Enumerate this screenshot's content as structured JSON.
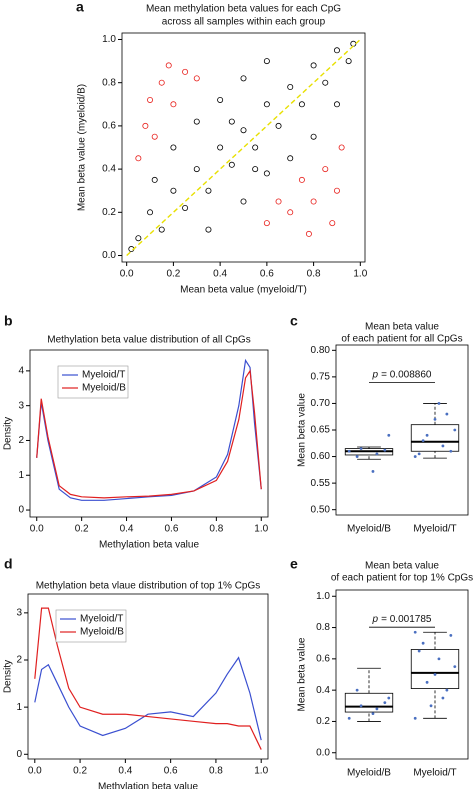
{
  "chart_data": [
    {
      "type": "scatter",
      "panel": "a",
      "title": [
        "Mean methylation beta values for each CpG",
        "across all samples within each group"
      ],
      "x_label": "Mean beta value (myeloid/T)",
      "y_label": "Mean beta value (myeloid/B)",
      "xlim": [
        -0.02,
        1.02
      ],
      "ylim": [
        -0.03,
        1.03
      ],
      "xticks": [
        {
          "value": 0,
          "label": "0.0"
        },
        0.2,
        0.4,
        0.6,
        0.8,
        {
          "value": 1,
          "label": "1.0"
        }
      ],
      "yticks": [
        {
          "value": 0,
          "label": "0.0"
        },
        0.2,
        0.4,
        0.6,
        0.8,
        {
          "value": 1,
          "label": "1.0"
        }
      ],
      "diagonal": true,
      "diagonal_color": "#e8e000",
      "series": [
        {
          "color": "#e8201c",
          "x": [
            0.05,
            0.08,
            0.1,
            0.12,
            0.15,
            0.2,
            0.18,
            0.25,
            0.3,
            0.6,
            0.65,
            0.7,
            0.75,
            0.8,
            0.85,
            0.9,
            0.92,
            0.88,
            0.78
          ],
          "values": [
            0.45,
            0.6,
            0.72,
            0.55,
            0.8,
            0.7,
            0.88,
            0.85,
            0.82,
            0.15,
            0.25,
            0.2,
            0.35,
            0.25,
            0.4,
            0.3,
            0.5,
            0.15,
            0.1
          ]
        },
        {
          "color": "#000000",
          "x": [
            0.05,
            0.1,
            0.15,
            0.2,
            0.25,
            0.3,
            0.35,
            0.4,
            0.45,
            0.5,
            0.55,
            0.6,
            0.65,
            0.7,
            0.75,
            0.8,
            0.85,
            0.9,
            0.95,
            0.12,
            0.2,
            0.3,
            0.4,
            0.5,
            0.6,
            0.35,
            0.5,
            0.6,
            0.7,
            0.8,
            0.9,
            0.02,
            0.97,
            0.45,
            0.55
          ],
          "values": [
            0.08,
            0.2,
            0.12,
            0.3,
            0.22,
            0.4,
            0.3,
            0.5,
            0.42,
            0.58,
            0.5,
            0.7,
            0.6,
            0.78,
            0.7,
            0.88,
            0.8,
            0.95,
            0.9,
            0.35,
            0.5,
            0.62,
            0.72,
            0.82,
            0.9,
            0.12,
            0.25,
            0.38,
            0.45,
            0.55,
            0.7,
            0.03,
            0.98,
            0.62,
            0.4
          ]
        }
      ]
    },
    {
      "type": "line",
      "panel": "b",
      "title": [
        "Methylation beta value distribution of all CpGs"
      ],
      "x_label": "Methylation beta value",
      "y_label": "Density",
      "xlim": [
        -0.03,
        1.03
      ],
      "ylim": [
        -0.2,
        4.6
      ],
      "xticks": [
        {
          "value": 0,
          "label": "0.0"
        },
        0.2,
        0.4,
        0.6,
        0.8,
        {
          "value": 1,
          "label": "1.0"
        }
      ],
      "yticks": [
        0,
        1,
        2,
        3,
        4
      ],
      "legend": "upper left",
      "x": [
        0,
        0.02,
        0.05,
        0.1,
        0.15,
        0.2,
        0.3,
        0.4,
        0.5,
        0.6,
        0.7,
        0.8,
        0.85,
        0.9,
        0.93,
        0.95,
        0.97,
        1.0
      ],
      "series": [
        {
          "name": "Myeloid/T",
          "color": "#3a4fd0",
          "values": [
            1.5,
            3.1,
            2.0,
            0.6,
            0.35,
            0.28,
            0.28,
            0.33,
            0.38,
            0.42,
            0.55,
            0.95,
            1.6,
            3.0,
            4.3,
            4.1,
            2.5,
            0.6
          ]
        },
        {
          "name": "Myeloid/B",
          "color": "#e02020",
          "values": [
            1.5,
            3.2,
            2.1,
            0.7,
            0.45,
            0.38,
            0.35,
            0.38,
            0.4,
            0.45,
            0.55,
            0.85,
            1.4,
            2.6,
            3.8,
            4.0,
            2.8,
            0.6
          ]
        }
      ]
    },
    {
      "type": "box",
      "panel": "c",
      "title": [
        "Mean beta value",
        "of each patient for all CpGs"
      ],
      "y_label": "Mean beta value",
      "ylim": [
        0.49,
        0.81
      ],
      "yticks": [
        {
          "value": 0.5,
          "label": "0.50"
        },
        0.55,
        {
          "value": 0.6,
          "label": "0.60"
        },
        0.65,
        {
          "value": 0.7,
          "label": "0.70"
        },
        0.75,
        {
          "value": 0.8,
          "label": "0.80"
        }
      ],
      "annotation": {
        "italic": "p",
        "text": "= 0.008860"
      },
      "categories": [
        "Myeloid/B",
        "Myeloid/T"
      ],
      "boxes": [
        {
          "min": 0.595,
          "q1": 0.603,
          "median": 0.61,
          "q3": 0.615,
          "max": 0.618
        },
        {
          "min": 0.597,
          "q1": 0.61,
          "median": 0.628,
          "q3": 0.66,
          "max": 0.7
        }
      ],
      "points": [
        [
          0.61,
          0.605,
          0.615,
          0.64,
          0.572,
          0.6,
          0.612
        ],
        [
          0.6,
          0.62,
          0.64,
          0.65,
          0.7,
          0.63,
          0.61,
          0.67,
          0.605,
          0.68
        ]
      ],
      "point_color": "#4a6fc0"
    },
    {
      "type": "line",
      "panel": "d",
      "title": [
        "Methylation beta vlaue distribution of top 1% CpGs"
      ],
      "x_label": "Methylation beta value",
      "y_label": "Density",
      "xlim": [
        -0.03,
        1.03
      ],
      "ylim": [
        -0.1,
        3.4
      ],
      "xticks": [
        {
          "value": 0,
          "label": "0.0"
        },
        0.2,
        0.4,
        0.6,
        0.8,
        {
          "value": 1,
          "label": "1.0"
        }
      ],
      "yticks": [
        0,
        1,
        2,
        3
      ],
      "legend": "upper left",
      "x": [
        0,
        0.03,
        0.06,
        0.1,
        0.15,
        0.2,
        0.3,
        0.4,
        0.5,
        0.6,
        0.7,
        0.8,
        0.85,
        0.9,
        0.95,
        1.0
      ],
      "series": [
        {
          "name": "Myeloid/T",
          "color": "#3a4fd0",
          "values": [
            1.1,
            1.8,
            1.9,
            1.5,
            1.0,
            0.6,
            0.4,
            0.55,
            0.85,
            0.9,
            0.8,
            1.3,
            1.7,
            2.05,
            1.3,
            0.3
          ]
        },
        {
          "name": "Myeloid/B",
          "color": "#e02020",
          "values": [
            1.6,
            3.1,
            3.1,
            2.3,
            1.4,
            1.0,
            0.85,
            0.85,
            0.8,
            0.75,
            0.7,
            0.65,
            0.65,
            0.6,
            0.6,
            0.1
          ]
        }
      ]
    },
    {
      "type": "box",
      "panel": "e",
      "title": [
        "Mean beta value",
        "of each patient for top 1% CpGs"
      ],
      "y_label": "Mean beta value",
      "ylim": [
        -0.04,
        1.04
      ],
      "yticks": [
        {
          "value": 0,
          "label": "0.0"
        },
        0.2,
        0.4,
        0.6,
        0.8,
        {
          "value": 1,
          "label": "1.0"
        }
      ],
      "annotation": {
        "italic": "p",
        "text": "= 0.001785"
      },
      "categories": [
        "Myeloid/B",
        "Myeloid/T"
      ],
      "boxes": [
        {
          "min": 0.2,
          "q1": 0.26,
          "median": 0.295,
          "q3": 0.38,
          "max": 0.54
        },
        {
          "min": 0.22,
          "q1": 0.41,
          "median": 0.51,
          "q3": 0.66,
          "max": 0.77
        }
      ],
      "points": [
        [
          0.22,
          0.28,
          0.3,
          0.35,
          0.25,
          0.4,
          0.32
        ],
        [
          0.22,
          0.35,
          0.45,
          0.55,
          0.6,
          0.7,
          0.75,
          0.5,
          0.65,
          0.4,
          0.3,
          0.77
        ]
      ],
      "point_color": "#4a6fc0"
    }
  ]
}
